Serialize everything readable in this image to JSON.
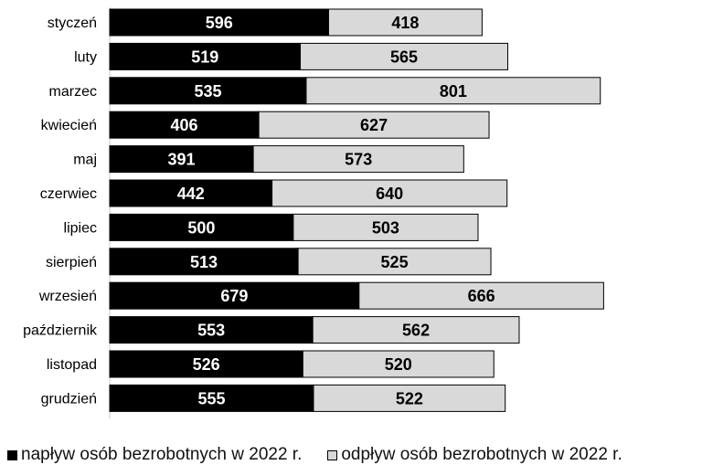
{
  "chart_data": {
    "type": "bar",
    "orientation": "horizontal",
    "stacked": true,
    "categories": [
      "styczeń",
      "luty",
      "marzec",
      "kwiecień",
      "maj",
      "czerwiec",
      "lipiec",
      "sierpień",
      "wrzesień",
      "październik",
      "listopad",
      "grudzień"
    ],
    "series": [
      {
        "name": "napływ osób bezrobotnych w 2022 r.",
        "values": [
          596,
          519,
          535,
          406,
          391,
          442,
          500,
          513,
          679,
          553,
          526,
          555
        ],
        "color": "#000000",
        "label_color": "#ffffff"
      },
      {
        "name": "odpływ osób bezrobotnych w 2022 r.",
        "values": [
          418,
          565,
          801,
          627,
          573,
          640,
          503,
          525,
          666,
          562,
          520,
          522
        ],
        "color": "#d9d9d9",
        "label_color": "#000000"
      }
    ],
    "xlim": [
      0,
      1354
    ],
    "grid": false,
    "legend_position": "bottom"
  }
}
